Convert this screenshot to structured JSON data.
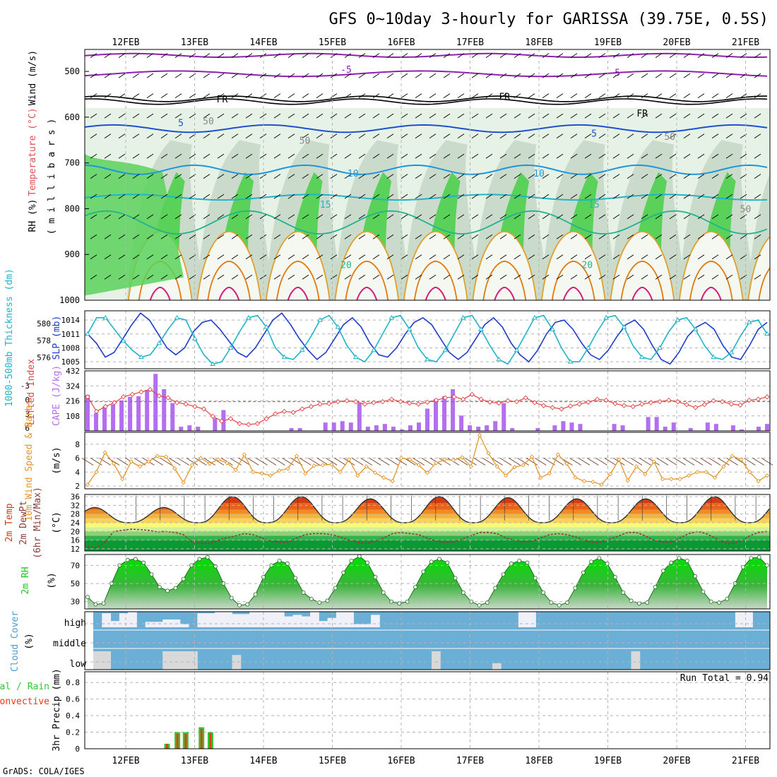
{
  "title": "GFS 0~10day 3-hourly for GARISSA (39.75E, 0.5S)",
  "footer": "GrADS: COLA/IGES",
  "dates": [
    "12FEB",
    "13FEB",
    "14FEB",
    "15FEB",
    "16FEB",
    "17FEB",
    "18FEB",
    "19FEB",
    "20FEB",
    "21FEB"
  ],
  "colors": {
    "rh_dark": "#5ad25a",
    "rh_mid": "#c8d8c8",
    "rh_light": "#e6f2e6",
    "cape": "#b46ef0",
    "lifted": "#e04646",
    "slp": "#1e3cc8",
    "thickness": "#1eb4c8",
    "wind10": "#e69628",
    "temp_hot": "#e63c14",
    "rh2m": "#1ec81e",
    "cloud_blue": "#6baed6",
    "cloud_white": "#f0f0f8",
    "cloud_grey": "#d9d9d9",
    "rain": "#e63c14",
    "precip_green": "#32c832",
    "grid": "#b4b4b4"
  },
  "chart_data": [
    {
      "type": "heatmap",
      "panel": "upper-air",
      "ylabel_parts": [
        "RH (%)",
        "Temperature (°C)",
        "Wind (m/s)"
      ],
      "ylabel2": "( m i l l i b a r s )",
      "yticks": [
        500,
        600,
        700,
        800,
        900,
        1000
      ],
      "contour_labels": [
        {
          "text": "-5",
          "day": 3.2,
          "p": 495
        },
        {
          "text": "-5",
          "day": 7.1,
          "p": 502
        },
        {
          "text": "FR",
          "day": 1.4,
          "p": 560
        },
        {
          "text": "FR",
          "day": 5.5,
          "p": 555
        },
        {
          "text": "FR",
          "day": 7.5,
          "p": 591
        },
        {
          "text": "5",
          "day": 0.8,
          "p": 612
        },
        {
          "text": "5",
          "day": 6.8,
          "p": 635
        },
        {
          "text": "10",
          "day": 3.3,
          "p": 722
        },
        {
          "text": "10",
          "day": 6.0,
          "p": 722
        },
        {
          "text": "15",
          "day": 2.9,
          "p": 790
        },
        {
          "text": "15",
          "day": 6.8,
          "p": 790
        },
        {
          "text": "20",
          "day": 3.2,
          "p": 922
        },
        {
          "text": "20",
          "day": 6.7,
          "p": 922
        },
        {
          "text": "50",
          "day": 1.2,
          "p": 608
        },
        {
          "text": "50",
          "day": 2.6,
          "p": 650
        },
        {
          "text": "50",
          "day": 7.9,
          "p": 642
        },
        {
          "text": "50",
          "day": 9.0,
          "p": 800
        },
        {
          "text": "50",
          "day": 9.9,
          "p": 806
        }
      ]
    },
    {
      "type": "line",
      "panel": "slp-thickness",
      "ylabel_left": "1000-500mb Thickness (dm)",
      "ylabel_right": "SLP (mb)",
      "left_ticks": [
        576,
        578,
        580
      ],
      "right_ticks": [
        1005,
        1008,
        1011,
        1014
      ],
      "ylim": [
        1003.5,
        1016
      ],
      "series": [
        {
          "name": "SLP (mb)",
          "values": [
            1011,
            1009,
            1006,
            1007,
            1010,
            1013,
            1015.5,
            1014,
            1011,
            1008,
            1006.5,
            1008,
            1011.5,
            1013.5,
            1014,
            1012,
            1009.5,
            1007,
            1006,
            1008,
            1011,
            1014,
            1015.5,
            1013,
            1010,
            1007.5,
            1005.5,
            1007,
            1010,
            1013,
            1014.5,
            1012.5,
            1009,
            1006.5,
            1006,
            1008,
            1011,
            1013.5,
            1014.5,
            1013,
            1010,
            1007,
            1005.5,
            1007,
            1010,
            1013,
            1014.5,
            1012.5,
            1009,
            1006.5,
            1005,
            1007.5,
            1011,
            1013.5,
            1014,
            1012,
            1009,
            1006.5,
            1005.5,
            1007.5,
            1010.5,
            1013,
            1014,
            1012,
            1008.5,
            1005.5,
            1004.5,
            1007,
            1010.5,
            1012.5,
            1013.5,
            1012,
            1008.5,
            1006,
            1005.5,
            1008.5,
            1012,
            1013.5
          ]
        },
        {
          "name": "1000-500mb Thickness (dm)",
          "values": [
            1011,
            1014.5,
            1014.5,
            1012,
            1009.5,
            1007.5,
            1006,
            1006.5,
            1009,
            1012,
            1014.5,
            1014,
            1010,
            1006.5,
            1004.5,
            1005,
            1008,
            1011.5,
            1014.5,
            1015,
            1012.5,
            1008,
            1006,
            1005.5,
            1007.5,
            1010.5,
            1014,
            1015,
            1012.5,
            1008.5,
            1006,
            1005,
            1007.5,
            1011,
            1014.5,
            1015,
            1012,
            1008,
            1005.5,
            1005,
            1007.5,
            1011,
            1014.5,
            1015,
            1012,
            1008.5,
            1005.5,
            1004.5,
            1007.5,
            1011,
            1014.5,
            1015,
            1012,
            1008,
            1005,
            1005,
            1008,
            1011.5,
            1014.5,
            1015,
            1012.5,
            1008.5,
            1006,
            1005.5,
            1008,
            1011.5,
            1014,
            1014.5,
            1012,
            1008.5,
            1006,
            1005.5,
            1007,
            1010.5,
            1013.5,
            1014,
            1011
          ]
        }
      ]
    },
    {
      "type": "bar",
      "panel": "cape-li",
      "ylabel_left": "Lifted Index",
      "ylabel_right": "CAPE (J/kg)",
      "li_ticks": [
        "-3",
        "0",
        "3",
        "6"
      ],
      "cape_ticks": [
        108,
        216,
        324,
        432
      ],
      "li_zero_line": 0,
      "cape_values": [
        259,
        128,
        173,
        190,
        220,
        245,
        250,
        295,
        410,
        300,
        200,
        30,
        40,
        30,
        0,
        90,
        150,
        0,
        0,
        0,
        0,
        0,
        0,
        0,
        20,
        20,
        0,
        0,
        60,
        60,
        70,
        60,
        200,
        30,
        40,
        50,
        30,
        10,
        40,
        60,
        160,
        230,
        250,
        300,
        110,
        40,
        30,
        40,
        70,
        200,
        20,
        0,
        0,
        20,
        0,
        40,
        70,
        60,
        50,
        0,
        0,
        0,
        50,
        40,
        0,
        0,
        100,
        100,
        30,
        60,
        0,
        20,
        0,
        60,
        50,
        0,
        40,
        10,
        0,
        30,
        50
      ],
      "li_values": [
        -1,
        2,
        1,
        0.2,
        -1,
        -1.5,
        -2,
        -2.5,
        -1.2,
        -0.8,
        0.2,
        0.5,
        1,
        1.5,
        3,
        4,
        3.5,
        4.5,
        4.7,
        4.5,
        3.5,
        2.5,
        2,
        2.2,
        1.5,
        1,
        0.5,
        0.4,
        0,
        -0.2,
        0,
        0.5,
        0.2,
        0,
        -0.5,
        0,
        0.3,
        0.5,
        0.1,
        -0.3,
        -0.8,
        -1,
        -0.5,
        -1.5,
        -0.5,
        0.1,
        0.3,
        -0.2,
        0,
        -0.8,
        0.2,
        0.8,
        1.2,
        1.5,
        0.9,
        0.5,
        0.1,
        -0.5,
        -0.3,
        0.4,
        0.8,
        1,
        0.5,
        0.2,
        0,
        -0.3,
        0,
        0.6,
        1.2,
        0.6,
        -0.2,
        0,
        0.5,
        0.7,
        -0.3,
        -0.5,
        -1
      ]
    },
    {
      "type": "line",
      "panel": "wind10m",
      "ylabel": "10m Wind Speed & Barbs",
      "ylabel_right": "(m/s)",
      "yticks": [
        2,
        4,
        6,
        8
      ],
      "ylim": [
        2,
        9.3
      ],
      "values": [
        2.2,
        4,
        6.8,
        5.2,
        3,
        5.5,
        4.8,
        5.5,
        6.3,
        6.2,
        4.5,
        2.5,
        5,
        6,
        5.2,
        5.8,
        5.3,
        4.3,
        6.5,
        4,
        3.8,
        3.5,
        4.2,
        4.5,
        6.3,
        3.8,
        4.9,
        5,
        5.1,
        4,
        5.8,
        3.5,
        4.8,
        3.9,
        3.2,
        2.7,
        6,
        5.8,
        5,
        3.9,
        5.3,
        5.8,
        5.7,
        6.1,
        4.8,
        9.3,
        6.7,
        4.8,
        3.5,
        4.7,
        5,
        6.2,
        3.2,
        3.8,
        6.5,
        5.2,
        3.2,
        2.7,
        2.6,
        2.2,
        3.7,
        5.8,
        2.8,
        4.8,
        3.7,
        5.5,
        3,
        3,
        3,
        3.5,
        4,
        4,
        3.2,
        4.8,
        6.3,
        5.8,
        4,
        2.7,
        3.5
      ]
    },
    {
      "type": "area",
      "panel": "temp-dewpt",
      "ylabel_lines": [
        "2m Temp",
        "2m DewPt",
        "(6hr Min/Max)"
      ],
      "ylabel_right": "(°C)",
      "yticks": [
        12,
        16,
        20,
        24,
        28,
        32,
        36
      ],
      "ylim": [
        11,
        37
      ],
      "bands": [
        {
          "lo": 11,
          "hi": 16,
          "color": "#0a9a32"
        },
        {
          "lo": 16,
          "hi": 18,
          "color": "#32b44a"
        },
        {
          "lo": 18,
          "hi": 20,
          "color": "#8cd27a"
        },
        {
          "lo": 20,
          "hi": 22,
          "color": "#d2f09a"
        },
        {
          "lo": 22,
          "hi": 24,
          "color": "#fafa78"
        },
        {
          "lo": 24,
          "hi": 26,
          "color": "#fad25a"
        },
        {
          "lo": 26,
          "hi": 28,
          "color": "#f0b440"
        },
        {
          "lo": 28,
          "hi": 30,
          "color": "#f08c28"
        },
        {
          "lo": 30,
          "hi": 33,
          "color": "#e8641e"
        },
        {
          "lo": 33,
          "hi": 37,
          "color": "#d23c14"
        }
      ],
      "temp_peak_days": [
        0.0,
        0.55,
        1.55,
        2.55,
        3.55,
        4.55,
        5.55,
        6.55,
        7.55,
        8.55,
        9.55
      ],
      "temp_peaks": [
        31,
        31,
        36,
        36,
        35,
        36,
        35.5,
        35,
        35,
        36,
        36
      ],
      "temp_min": 24,
      "dewpt_values": [
        13,
        12.5,
        15,
        20,
        20.5,
        21,
        20.8,
        20.5,
        19.8,
        20,
        19.5,
        18.5,
        15,
        14.5,
        14.5,
        16,
        17,
        18,
        19,
        18.5,
        17,
        15.5,
        15,
        15,
        17,
        18.5,
        19,
        19,
        18.5,
        17.5,
        16,
        15,
        14.5,
        15.5,
        17,
        19,
        19.5,
        19,
        18.5,
        17,
        15.5,
        15,
        15,
        16.5,
        18,
        19.5,
        19.5,
        19,
        17,
        16,
        15,
        15.5,
        17,
        18.5,
        19,
        18.5,
        17.5,
        16,
        15,
        15,
        16.5,
        18,
        19.5,
        19.5,
        18,
        16,
        15,
        15,
        17,
        19,
        20,
        19,
        17,
        15,
        14.5,
        15.5,
        18,
        19.5,
        20
      ]
    },
    {
      "type": "area",
      "panel": "rh2m",
      "ylabel": "2m RH",
      "ylabel_right": "(%)",
      "yticks": [
        30,
        50,
        70
      ],
      "ylim": [
        22,
        82
      ],
      "values": [
        35,
        27,
        28,
        50,
        70,
        76,
        77,
        73,
        60,
        46,
        42,
        45,
        55,
        70,
        77,
        79,
        69,
        50,
        34,
        26,
        27,
        38,
        57,
        70,
        75,
        72,
        56,
        40,
        33,
        29,
        31,
        45,
        62,
        75,
        80,
        73,
        57,
        40,
        30,
        28,
        30,
        46,
        63,
        74,
        77,
        73,
        56,
        40,
        30,
        26,
        29,
        45,
        60,
        72,
        75,
        73,
        56,
        40,
        29,
        26,
        29,
        45,
        62,
        74,
        78,
        72,
        57,
        40,
        31,
        28,
        29,
        46,
        64,
        73,
        78,
        75,
        58,
        41,
        30,
        29,
        33,
        50,
        68,
        78,
        79,
        70
      ]
    },
    {
      "type": "table",
      "panel": "cloud-cover",
      "ylabel": "Cloud Cover",
      "ylabel_right": "(%)",
      "levels": [
        "high",
        "middle",
        "low"
      ],
      "high_values": [
        0,
        90,
        40,
        90,
        100,
        0,
        35,
        35,
        50,
        50,
        20,
        0,
        90,
        90,
        100,
        100,
        85,
        85,
        100,
        100,
        100,
        100,
        70,
        80,
        70,
        100,
        40,
        60,
        100,
        100,
        20,
        20,
        80,
        0,
        0,
        0,
        0,
        0,
        0,
        0,
        0,
        0,
        0,
        0,
        0,
        0,
        0,
        0,
        0,
        100,
        100,
        0,
        0,
        0,
        0,
        0,
        0,
        0,
        0,
        0,
        0,
        0,
        0,
        0,
        0,
        0,
        0,
        0,
        0,
        0,
        0,
        0,
        0,
        0,
        100,
        100,
        0,
        0
      ],
      "low_values": [
        100,
        100,
        0,
        0,
        0,
        0,
        0,
        0,
        100,
        100,
        100,
        100,
        0,
        0,
        0,
        0,
        80,
        0,
        0,
        0,
        0,
        0,
        0,
        0,
        0,
        0,
        0,
        0,
        0,
        0,
        0,
        0,
        0,
        0,
        0,
        0,
        0,
        0,
        0,
        100,
        0,
        0,
        0,
        0,
        0,
        0,
        35,
        0,
        0,
        0,
        0,
        0,
        0,
        0,
        0,
        0,
        0,
        0,
        0,
        0,
        0,
        0,
        100,
        0,
        0,
        0,
        0,
        0,
        0,
        0,
        0,
        0,
        0,
        0,
        0,
        0,
        0,
        0
      ]
    },
    {
      "type": "bar",
      "panel": "precip",
      "ylabel_parts": [
        "Total / Rain",
        "Convective"
      ],
      "ylabel2": "3hr Precip (mm)",
      "yticks": [
        0,
        0.2,
        0.4,
        0.6,
        0.8
      ],
      "ylim": [
        0,
        0.93
      ],
      "run_total": "Run Total = 0.94",
      "bars": [
        {
          "day": 0.6,
          "total": 0.06,
          "conv": 0.06
        },
        {
          "day": 0.75,
          "total": 0.2,
          "conv": 0.18
        },
        {
          "day": 0.87,
          "total": 0.2,
          "conv": 0.18
        },
        {
          "day": 1.1,
          "total": 0.26,
          "conv": 0.24
        },
        {
          "day": 1.23,
          "total": 0.2,
          "conv": 0.19
        },
        {
          "day": 9.7,
          "total": 0.07,
          "conv": 0.06
        }
      ]
    }
  ]
}
